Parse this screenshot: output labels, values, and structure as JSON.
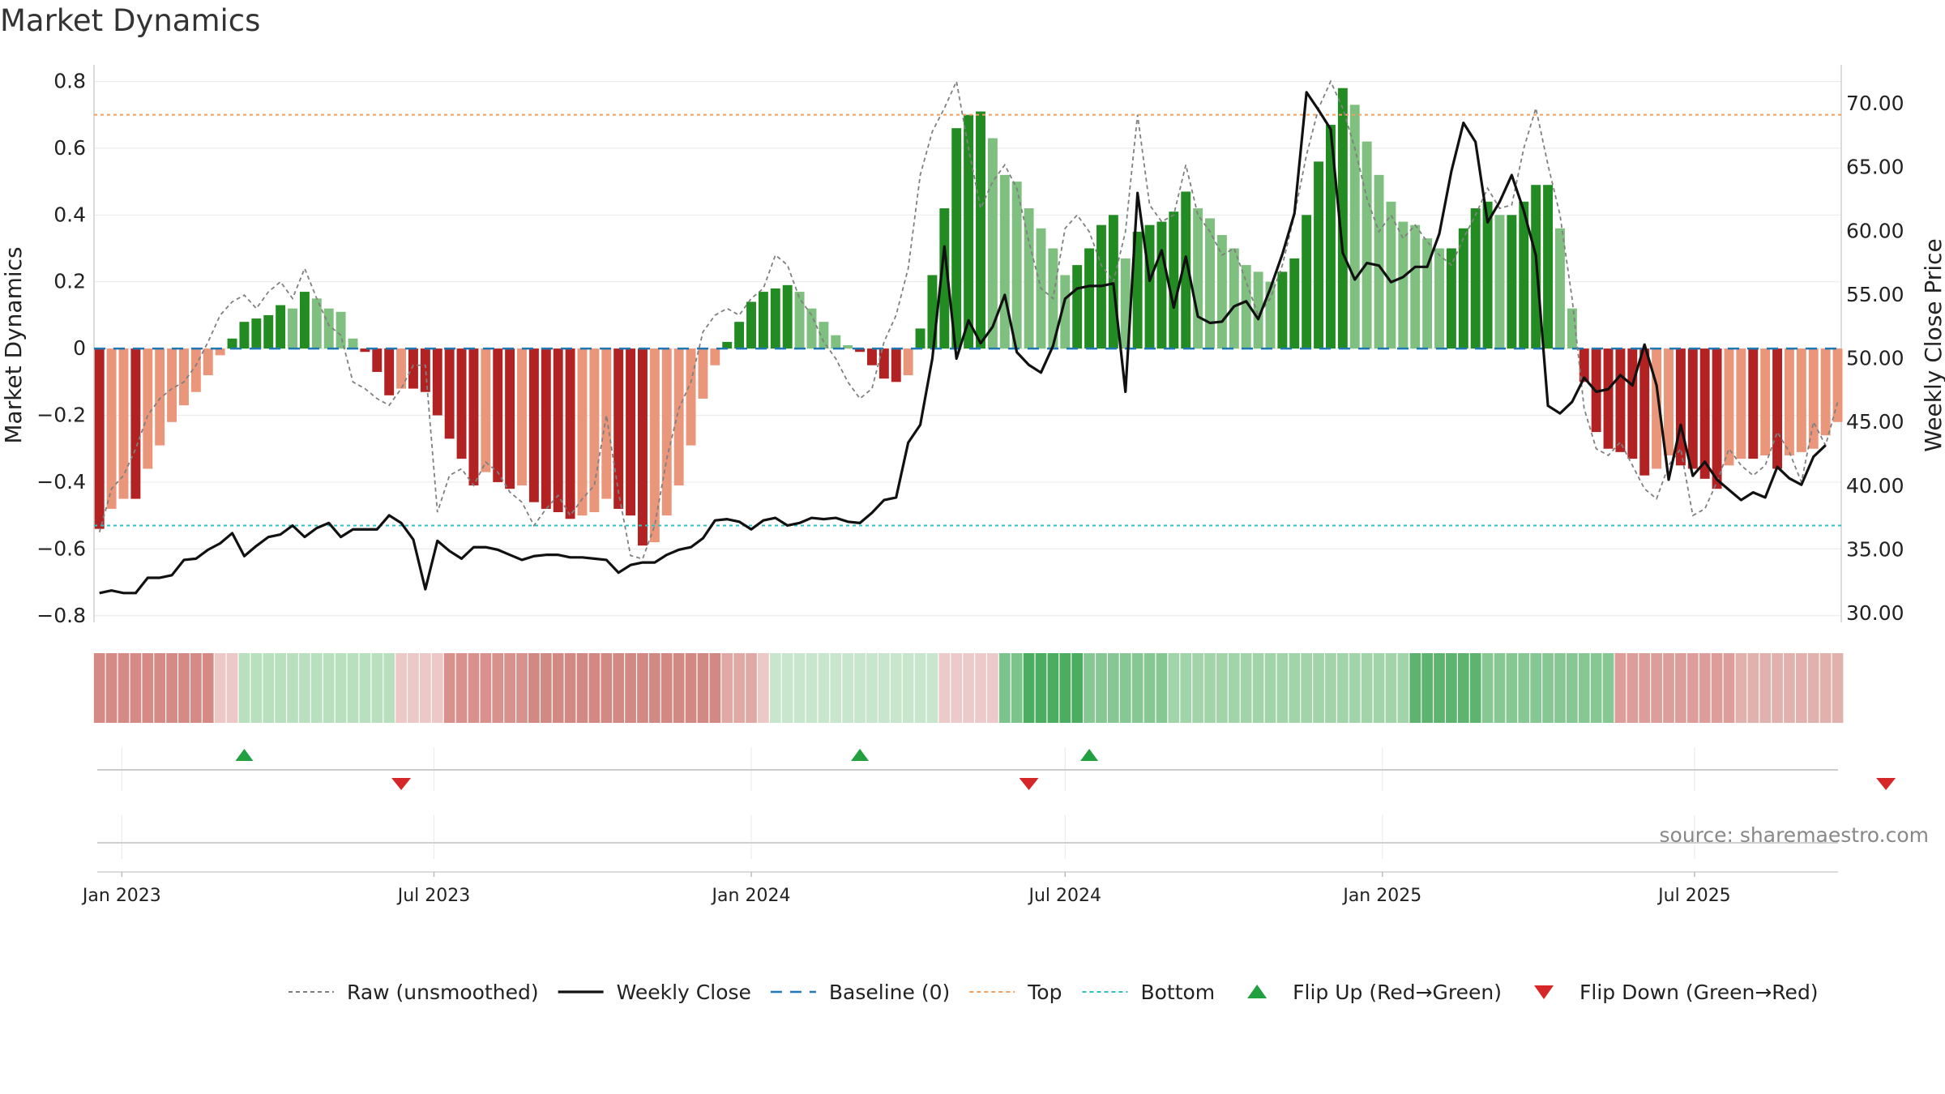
{
  "title": "Market Dynamics",
  "source": "source: sharemaestro.com",
  "colors": {
    "strong_green": "#228b22",
    "light_green": "#7fbf7f",
    "strong_red": "#b22222",
    "light_red": "#e9967a",
    "raw": "#808080",
    "close": "#111111",
    "baseline": "#1f77b4",
    "top": "#f0a060",
    "bottom": "#30c0c0",
    "flip_up": "#22a040",
    "flip_down": "#d62728"
  },
  "legend": [
    {
      "label": "Raw (unsmoothed)",
      "type": "dotted-line",
      "color": "#808080"
    },
    {
      "label": "Weekly Close",
      "type": "solid-line",
      "color": "#111111"
    },
    {
      "label": "Baseline (0)",
      "type": "dashed-line",
      "color": "#1f77b4"
    },
    {
      "label": "Top",
      "type": "dotted-line",
      "color": "#f0a060"
    },
    {
      "label": "Bottom",
      "type": "dotted-line",
      "color": "#30c0c0"
    },
    {
      "label": "Flip Up (Red→Green)",
      "type": "triangle-up",
      "color": "#22a040"
    },
    {
      "label": "Flip Down (Green→Red)",
      "type": "triangle-down",
      "color": "#d62728"
    }
  ],
  "chart_data": {
    "type": "bar",
    "x_start": "2022-12-19",
    "week_step_days": 7,
    "ylabel": "Market Dynamics",
    "y2label": "Weekly Close Price",
    "ylim": [
      -0.82,
      0.84
    ],
    "y2lim": [
      29.3,
      72.8
    ],
    "yticks": [
      "0.8",
      "0.6",
      "0.4",
      "0.2",
      "0",
      "−0.2",
      "−0.4",
      "−0.6",
      "−0.8"
    ],
    "ytick_values": [
      0.8,
      0.6,
      0.4,
      0.2,
      0,
      -0.2,
      -0.4,
      -0.6,
      -0.8
    ],
    "y2ticks": [
      "70.00",
      "65.00",
      "60.00",
      "55.00",
      "50.00",
      "45.00",
      "40.00",
      "35.00",
      "30.00"
    ],
    "y2tick_values": [
      70,
      65,
      60,
      55,
      50,
      45,
      40,
      35,
      30
    ],
    "xticks": [
      {
        "label": "Jan 2023",
        "date": "2023-01-01"
      },
      {
        "label": "Jul 2023",
        "date": "2023-07-01"
      },
      {
        "label": "Jan 2024",
        "date": "2024-01-01"
      },
      {
        "label": "Jul 2024",
        "date": "2024-07-01"
      },
      {
        "label": "Jan 2025",
        "date": "2025-01-01"
      },
      {
        "label": "Jul 2025",
        "date": "2025-07-01"
      }
    ],
    "top_line": 0.7,
    "bottom_line": -0.53,
    "baseline": 0,
    "series": [
      {
        "name": "Market Dynamics",
        "values": [
          -0.54,
          -0.48,
          -0.45,
          -0.45,
          -0.36,
          -0.29,
          -0.22,
          -0.17,
          -0.13,
          -0.08,
          -0.02,
          0.03,
          0.08,
          0.09,
          0.1,
          0.13,
          0.12,
          0.17,
          0.15,
          0.12,
          0.11,
          0.03,
          -0.01,
          -0.07,
          -0.14,
          -0.12,
          -0.12,
          -0.13,
          -0.2,
          -0.27,
          -0.33,
          -0.41,
          -0.37,
          -0.4,
          -0.42,
          -0.41,
          -0.46,
          -0.48,
          -0.49,
          -0.51,
          -0.5,
          -0.49,
          -0.45,
          -0.48,
          -0.5,
          -0.59,
          -0.58,
          -0.5,
          -0.41,
          -0.29,
          -0.15,
          -0.05,
          0.02,
          0.08,
          0.14,
          0.17,
          0.18,
          0.19,
          0.17,
          0.12,
          0.08,
          0.04,
          0.01,
          -0.01,
          -0.05,
          -0.09,
          -0.1,
          -0.08,
          0.06,
          0.22,
          0.42,
          0.66,
          0.7,
          0.71,
          0.63,
          0.52,
          0.5,
          0.42,
          0.36,
          0.3,
          0.22,
          0.25,
          0.3,
          0.37,
          0.4,
          0.27,
          0.35,
          0.37,
          0.38,
          0.41,
          0.47,
          0.42,
          0.39,
          0.34,
          0.3,
          0.25,
          0.23,
          0.2,
          0.23,
          0.27,
          0.4,
          0.56,
          0.67,
          0.78,
          0.73,
          0.62,
          0.52,
          0.44,
          0.38,
          0.37,
          0.33,
          0.3,
          0.3,
          0.36,
          0.42,
          0.44,
          0.4,
          0.4,
          0.44,
          0.49,
          0.49,
          0.36,
          0.12,
          -0.1,
          -0.25,
          -0.3,
          -0.31,
          -0.33,
          -0.38,
          -0.36,
          -0.32,
          -0.35,
          -0.36,
          -0.39,
          -0.42,
          -0.35,
          -0.33,
          -0.33,
          -0.32,
          -0.36,
          -0.32,
          -0.31,
          -0.3,
          -0.26,
          -0.22
        ]
      },
      {
        "name": "Raw (unsmoothed)",
        "values": [
          -0.55,
          -0.42,
          -0.38,
          -0.3,
          -0.2,
          -0.15,
          -0.12,
          -0.1,
          -0.05,
          0.02,
          0.1,
          0.14,
          0.16,
          0.12,
          0.17,
          0.2,
          0.15,
          0.24,
          0.15,
          0.07,
          0.04,
          -0.1,
          -0.12,
          -0.15,
          -0.17,
          -0.12,
          -0.05,
          -0.05,
          -0.49,
          -0.38,
          -0.36,
          -0.41,
          -0.34,
          -0.37,
          -0.43,
          -0.46,
          -0.53,
          -0.48,
          -0.44,
          -0.5,
          -0.45,
          -0.41,
          -0.2,
          -0.43,
          -0.62,
          -0.63,
          -0.53,
          -0.33,
          -0.18,
          -0.1,
          0.05,
          0.1,
          0.12,
          0.1,
          0.15,
          0.18,
          0.28,
          0.25,
          0.15,
          0.1,
          0.02,
          -0.03,
          -0.1,
          -0.15,
          -0.12,
          0.02,
          0.1,
          0.24,
          0.52,
          0.65,
          0.72,
          0.8,
          0.6,
          0.42,
          0.5,
          0.55,
          0.48,
          0.32,
          0.18,
          0.15,
          0.36,
          0.4,
          0.35,
          0.25,
          0.2,
          0.35,
          0.7,
          0.43,
          0.38,
          0.4,
          0.55,
          0.4,
          0.35,
          0.28,
          0.3,
          0.2,
          0.1,
          0.15,
          0.25,
          0.4,
          0.58,
          0.72,
          0.8,
          0.72,
          0.6,
          0.45,
          0.35,
          0.4,
          0.33,
          0.37,
          0.32,
          0.28,
          0.25,
          0.33,
          0.4,
          0.48,
          0.42,
          0.43,
          0.6,
          0.72,
          0.55,
          0.4,
          0.15,
          -0.18,
          -0.3,
          -0.32,
          -0.28,
          -0.35,
          -0.42,
          -0.45,
          -0.35,
          -0.3,
          -0.5,
          -0.48,
          -0.4,
          -0.3,
          -0.35,
          -0.38,
          -0.35,
          -0.25,
          -0.31,
          -0.4,
          -0.22,
          -0.29,
          -0.16
        ]
      },
      {
        "name": "Weekly Close",
        "values": [
          31.6,
          31.8,
          31.6,
          31.6,
          32.8,
          32.8,
          33.0,
          34.2,
          34.3,
          35.0,
          35.5,
          36.3,
          34.5,
          35.3,
          36.0,
          36.2,
          36.9,
          36.0,
          36.7,
          37.1,
          36.0,
          36.6,
          36.6,
          36.6,
          37.7,
          37.1,
          35.8,
          31.9,
          35.7,
          34.9,
          34.3,
          35.2,
          35.2,
          35.0,
          34.6,
          34.2,
          34.5,
          34.6,
          34.6,
          34.4,
          34.4,
          34.3,
          34.2,
          33.2,
          33.8,
          34.0,
          34.0,
          34.6,
          35.0,
          35.2,
          35.9,
          37.3,
          37.4,
          37.2,
          36.6,
          37.3,
          37.5,
          36.9,
          37.1,
          37.5,
          37.4,
          37.5,
          37.2,
          37.1,
          37.9,
          38.9,
          39.1,
          43.4,
          44.8,
          50.0,
          58.8,
          50.0,
          53.0,
          51.2,
          52.5,
          55.0,
          50.5,
          49.5,
          48.9,
          51.0,
          54.7,
          55.5,
          55.7,
          55.7,
          55.9,
          47.4,
          63.0,
          56.1,
          58.5,
          54.0,
          58.0,
          53.3,
          52.8,
          52.9,
          54.1,
          54.5,
          53.1,
          55.5,
          58.2,
          61.4,
          70.9,
          69.5,
          68.0,
          58.3,
          56.2,
          57.5,
          57.3,
          56.0,
          56.4,
          57.2,
          57.2,
          59.8,
          64.7,
          68.5,
          67.0,
          60.7,
          62.3,
          64.4,
          61.6,
          58.1,
          46.3,
          45.7,
          46.6,
          48.5,
          47.4,
          47.6,
          48.7,
          47.9,
          51.1,
          47.9,
          40.5,
          44.8,
          40.8,
          41.9,
          40.5,
          39.7,
          38.9,
          39.5,
          39.1,
          41.5,
          40.6,
          40.1,
          42.3,
          43.2
        ]
      }
    ],
    "color_strip": [
      {
        "color": "#d58a85",
        "weeks": 10
      },
      {
        "color": "#ecc8c6",
        "weeks": 2
      },
      {
        "color": "#b8e0bf",
        "weeks": 13
      },
      {
        "color": "#ecc8c6",
        "weeks": 4
      },
      {
        "color": "#d8918d",
        "weeks": 7
      },
      {
        "color": "#d38983",
        "weeks": 16
      },
      {
        "color": "#e0a9a5",
        "weeks": 3
      },
      {
        "color": "#ecc8c6",
        "weeks": 1
      },
      {
        "color": "#c7e6cc",
        "weeks": 14
      },
      {
        "color": "#eccaca",
        "weeks": 5
      },
      {
        "color": "#7dc38c",
        "weeks": 2
      },
      {
        "color": "#4aad5f",
        "weeks": 5
      },
      {
        "color": "#86c793",
        "weeks": 7
      },
      {
        "color": "#a1d4a9",
        "weeks": 20
      },
      {
        "color": "#5cb46f",
        "weeks": 6
      },
      {
        "color": "#86c793",
        "weeks": 11
      },
      {
        "color": "#dd9e9b",
        "weeks": 10
      },
      {
        "color": "#e2b1ae",
        "weeks": 10
      }
    ],
    "flips": [
      {
        "label": "Flip Up (Red→Green)",
        "direction": "up",
        "week": 12
      },
      {
        "label": "Flip Down (Green→Red)",
        "direction": "down",
        "week": 25
      },
      {
        "label": "Flip Up (Red→Green)",
        "direction": "up",
        "week": 63
      },
      {
        "label": "Flip Down (Green→Red)",
        "direction": "down",
        "week": 77
      },
      {
        "label": "Flip Up (Red→Green)",
        "direction": "up",
        "week": 82
      },
      {
        "label": "Flip Down (Green→Red)",
        "direction": "down",
        "week": 148
      }
    ]
  }
}
